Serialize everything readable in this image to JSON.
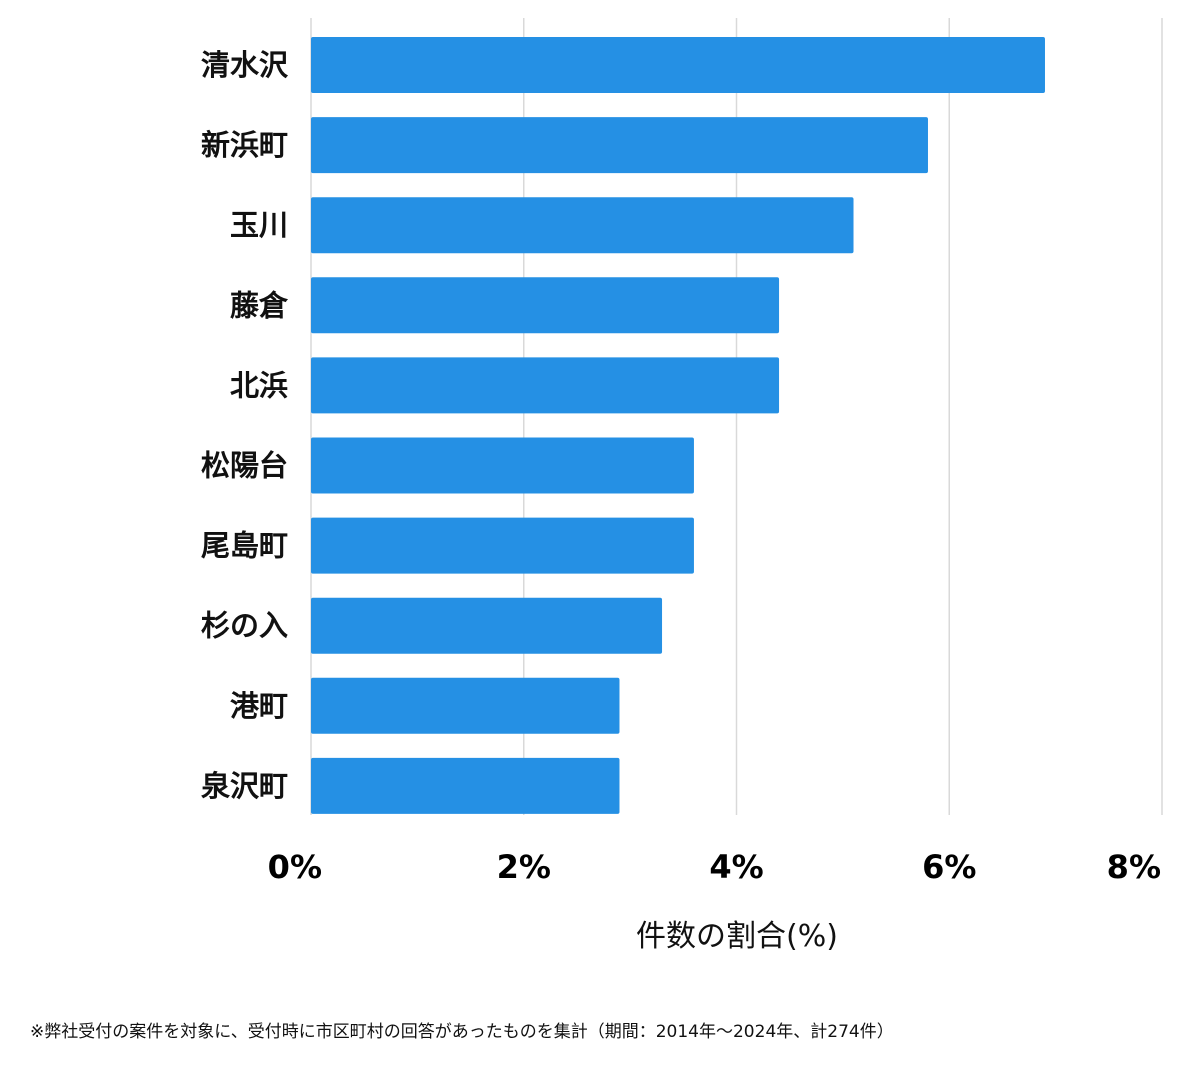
{
  "chart_data": {
    "type": "bar",
    "orientation": "horizontal",
    "categories": [
      "清水沢",
      "新浜町",
      "玉川",
      "藤倉",
      "北浜",
      "松陽台",
      "尾島町",
      "杉の入",
      "港町",
      "泉沢町"
    ],
    "values": [
      6.9,
      5.8,
      5.1,
      4.4,
      4.4,
      3.6,
      3.6,
      3.3,
      2.9,
      2.9
    ],
    "x_ticks": [
      "0%",
      "2%",
      "4%",
      "6%",
      "8%"
    ],
    "xlim": [
      0,
      8
    ],
    "xlabel": "件数の割合(%)",
    "ylabel": "",
    "title": "",
    "grid": "vertical",
    "bar_color": "#2590e4"
  },
  "footnote": "※弊社受付の案件を対象に、受付時に市区町村の回答があったものを集計（期間：2014年～2024年、計274件）"
}
